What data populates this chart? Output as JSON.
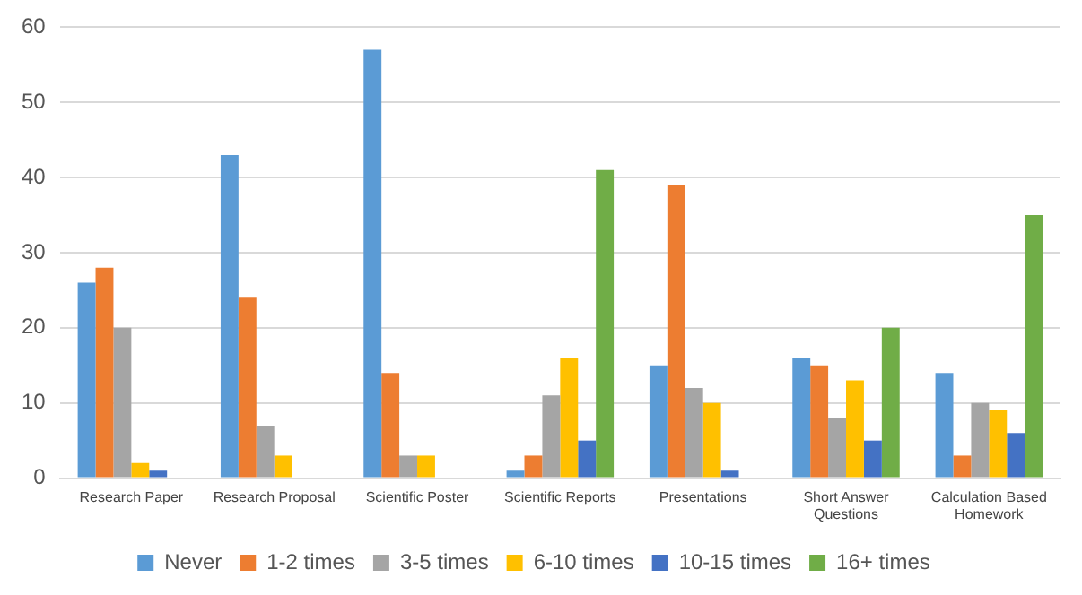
{
  "chart_data": {
    "type": "bar",
    "categories": [
      "Research Paper",
      "Research Proposal",
      "Scientific Poster",
      "Scientific Reports",
      "Presentations",
      "Short Answer Questions",
      "Calculation Based Homework"
    ],
    "series": [
      {
        "name": "Never",
        "color": "#5b9bd5",
        "values": [
          26,
          43,
          57,
          1,
          15,
          16,
          14
        ]
      },
      {
        "name": "1-2 times",
        "color": "#ed7d31",
        "values": [
          28,
          24,
          14,
          3,
          39,
          15,
          3
        ]
      },
      {
        "name": "3-5 times",
        "color": "#a5a5a5",
        "values": [
          20,
          7,
          3,
          11,
          12,
          8,
          10
        ]
      },
      {
        "name": "6-10 times",
        "color": "#ffc000",
        "values": [
          2,
          3,
          3,
          16,
          10,
          13,
          9
        ]
      },
      {
        "name": "10-15 times",
        "color": "#4472c4",
        "values": [
          1,
          0,
          0,
          5,
          1,
          5,
          6
        ]
      },
      {
        "name": "16+ times",
        "color": "#70ad47",
        "values": [
          0,
          0,
          0,
          41,
          0,
          20,
          35
        ]
      }
    ],
    "ylim": [
      0,
      60
    ],
    "yticks": [
      0,
      10,
      20,
      30,
      40,
      50,
      60
    ],
    "grid": "y",
    "legend": "bottom"
  }
}
